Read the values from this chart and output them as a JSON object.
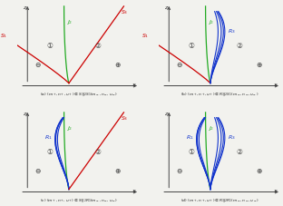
{
  "subplots": [
    {
      "label": "(a) $(m_+, n_+, u_+) \\in S_3J_2S_1(m_-, n_-, u_-)$",
      "left_type": "S1",
      "right_type": "S3",
      "left_color": "#cc0000",
      "right_color": "#cc0000",
      "mid_color": "#22aa22",
      "left_label": "S_1",
      "right_label": "S_3"
    },
    {
      "label": "(b) $(m_+, n_+, u_+) \\in R_3J_2S_1(m_-, n_-, u_-)$",
      "left_type": "S1",
      "right_type": "R3",
      "left_color": "#cc0000",
      "right_color": "#1133cc",
      "mid_color": "#22aa22",
      "left_label": "S_1",
      "right_label": "R_3"
    },
    {
      "label": "(c) $(m_+, n_+, u_+) \\in S_3J_2R_1(m_-, n_-, u_-)$",
      "left_type": "R1",
      "right_type": "S3",
      "left_color": "#1133cc",
      "right_color": "#cc0000",
      "mid_color": "#22aa22",
      "left_label": "R_1",
      "right_label": "S_3"
    },
    {
      "label": "(d) $(m_+, n_+, u_+) \\in R_3J_2R_1(m_-, n_-, u_-)$",
      "left_type": "R1",
      "right_type": "R3",
      "left_color": "#1133cc",
      "right_color": "#1133cc",
      "mid_color": "#22aa22",
      "left_label": "R_1",
      "right_label": "R_3"
    }
  ],
  "bg_color": "#f2f2ee"
}
